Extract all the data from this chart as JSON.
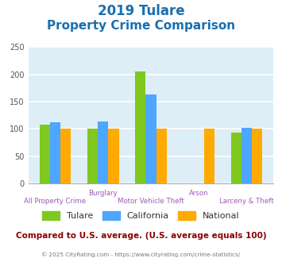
{
  "title_line1": "2019 Tulare",
  "title_line2": "Property Crime Comparison",
  "title_color": "#1a6faf",
  "categories": [
    "All Property Crime",
    "Burglary",
    "Motor Vehicle Theft",
    "Arson",
    "Larceny & Theft"
  ],
  "series": {
    "Tulare": [
      108,
      101,
      205,
      0,
      93
    ],
    "California": [
      112,
      114,
      163,
      0,
      102
    ],
    "National": [
      100,
      100,
      100,
      100,
      100
    ]
  },
  "colors": {
    "Tulare": "#7ec820",
    "California": "#4da6ff",
    "National": "#ffaa00"
  },
  "ylim": [
    0,
    250
  ],
  "yticks": [
    0,
    50,
    100,
    150,
    200,
    250
  ],
  "background_color": "#ddeef6",
  "grid_color": "#ffffff",
  "footer_text": "Compared to U.S. average. (U.S. average equals 100)",
  "footer_color": "#8b0000",
  "copyright_text": "© 2025 CityRating.com - https://www.cityrating.com/crime-statistics/",
  "copyright_color": "#777777",
  "xlabel_color": "#9b59b6",
  "bar_width": 0.22
}
